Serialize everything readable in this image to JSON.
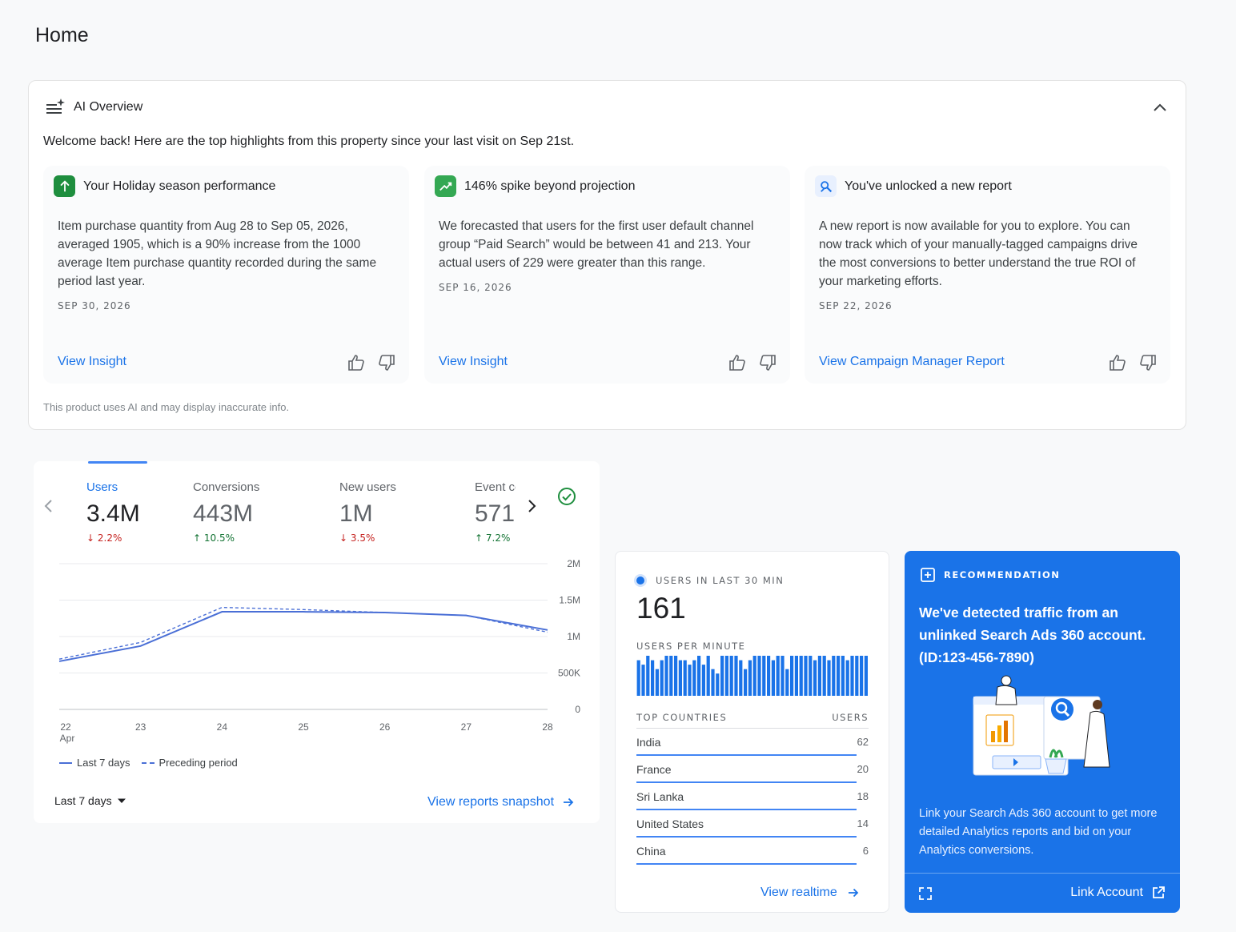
{
  "page": {
    "title": "Home"
  },
  "ai_overview": {
    "title": "AI Overview",
    "welcome": "Welcome back! Here are the top highlights from this property since your last visit on Sep 21st.",
    "disclaimer": "This product uses AI and may display inaccurate info.",
    "cards": [
      {
        "title": "Your Holiday season performance",
        "icon": "arrow-up-icon",
        "body": "Item purchase quantity from Aug 28 to Sep 05, 2026, averaged 1905, which is a 90% increase from the 1000 average Item purchase quantity recorded during the same period last year.",
        "date": "SEP 30, 2026",
        "link": "View Insight"
      },
      {
        "title": "146% spike beyond projection",
        "icon": "trending-up-icon",
        "body": "We forecasted that users for the first user default channel group “Paid Search” would be between 41 and 213. Your actual users of 229 were greater than this range.",
        "date": "SEP 16, 2026",
        "link": "View Insight"
      },
      {
        "title": "You've unlocked a new report",
        "icon": "report-icon",
        "body": "A new report is now available for you to explore. You can now track which of your manually-tagged campaigns drive the most conversions to better understand the true ROI of your marketing efforts.",
        "date": "SEP 22, 2026",
        "link": "View Campaign Manager Report"
      }
    ]
  },
  "metrics": {
    "items": [
      {
        "label": "Users",
        "value": "3.4M",
        "delta": "2.2%",
        "direction": "down",
        "active": true
      },
      {
        "label": "Conversions",
        "value": "443M",
        "delta": "10.5%",
        "direction": "up",
        "active": false
      },
      {
        "label": "New users",
        "value": "1M",
        "delta": "3.5%",
        "direction": "down",
        "active": false
      },
      {
        "label": "Event count",
        "value": "571",
        "delta": "7.2%",
        "direction": "up",
        "active": false
      }
    ],
    "legend": {
      "current": "Last 7 days",
      "previous": "Preceding period"
    },
    "range_select": "Last 7 days",
    "reports_link": "View reports snapshot"
  },
  "chart_data": {
    "type": "line",
    "x": [
      "22",
      "23",
      "24",
      "25",
      "26",
      "27",
      "28"
    ],
    "x_sublabel": "Apr",
    "y_ticks": [
      "0",
      "500K",
      "1M",
      "1.5M",
      "2M"
    ],
    "ylim": [
      0,
      2000000
    ],
    "grid": true,
    "series": [
      {
        "name": "Last 7 days",
        "style": "solid",
        "values": [
          660000,
          870000,
          1340000,
          1340000,
          1330000,
          1290000,
          1090000
        ]
      },
      {
        "name": "Preceding period",
        "style": "dashed",
        "values": [
          690000,
          920000,
          1400000,
          1370000,
          1330000,
          1290000,
          1060000
        ]
      }
    ]
  },
  "realtime": {
    "heading": "USERS IN LAST 30 MIN",
    "count": "161",
    "per_minute_label": "USERS PER MINUTE",
    "per_minute": [
      8,
      7,
      9,
      8,
      6,
      8,
      9,
      9,
      9,
      8,
      8,
      7,
      8,
      9,
      7,
      9,
      6,
      5,
      9,
      9,
      9,
      9,
      8,
      6,
      8,
      9,
      9,
      9,
      9,
      8,
      9,
      9,
      6,
      9,
      9,
      9,
      9,
      9,
      8,
      9,
      9,
      8,
      9,
      9,
      9,
      8,
      9,
      9,
      9,
      9
    ],
    "countries_header": "TOP COUNTRIES",
    "users_header": "USERS",
    "countries": [
      {
        "name": "India",
        "users": "62",
        "fraction": 1.0
      },
      {
        "name": "France",
        "users": "20",
        "fraction": 1.0
      },
      {
        "name": "Sri Lanka",
        "users": "18",
        "fraction": 1.0
      },
      {
        "name": "United States",
        "users": "14",
        "fraction": 1.0
      },
      {
        "name": "China",
        "users": "6",
        "fraction": 1.0
      }
    ],
    "link": "View realtime"
  },
  "recommendation": {
    "heading": "RECOMMENDATION",
    "title": "We've detected traffic from an unlinked Search Ads 360 account. (ID:123-456-7890)",
    "body": "Link your Search Ads 360 account to get more detailed Analytics reports and bid on your Analytics conversions.",
    "link": "Link Account"
  },
  "colors": {
    "accent": "#1a73e8",
    "chart_line": "#4a6fd6",
    "up": "#137333",
    "down": "#c5221f"
  }
}
